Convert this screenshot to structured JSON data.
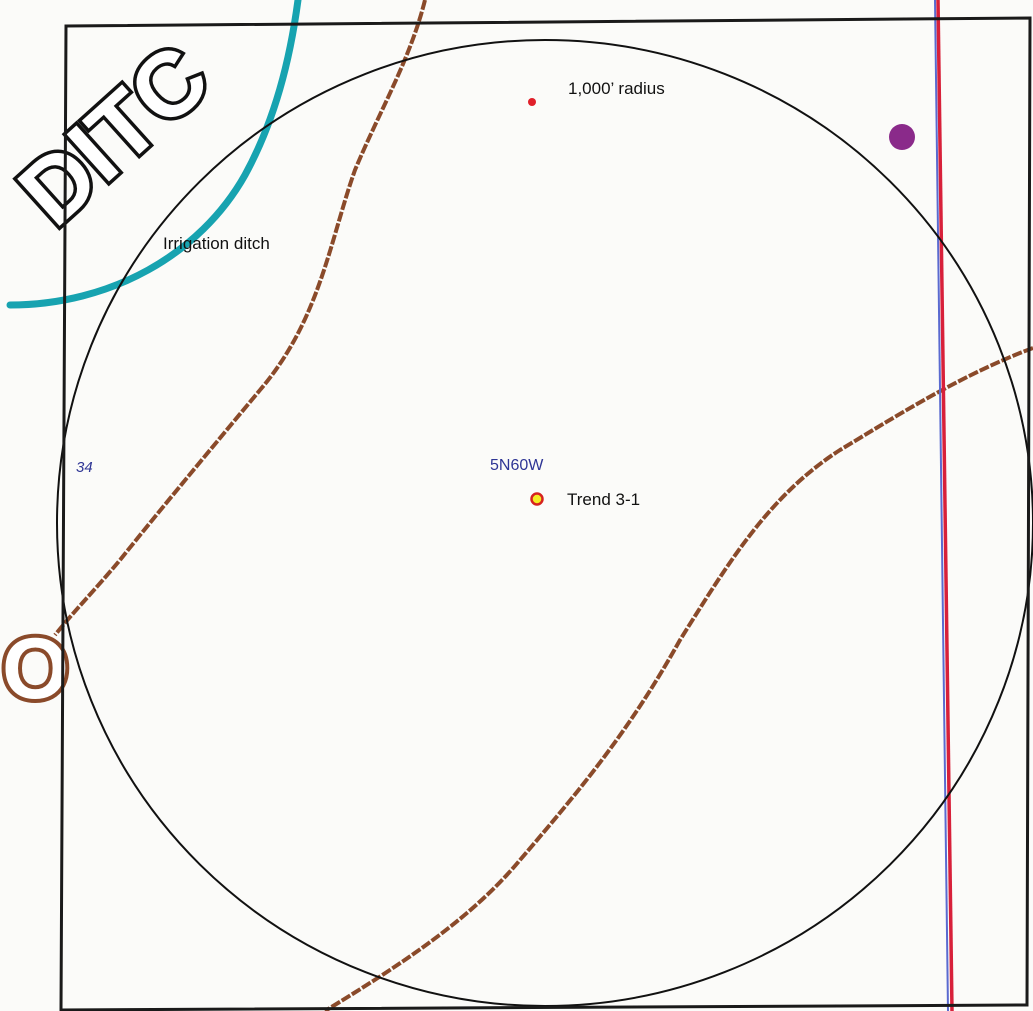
{
  "map": {
    "labels": {
      "radius": "1,000’ radius",
      "ditch": "Irrigation ditch",
      "section": "34",
      "township": "5N60W",
      "well": "Trend 3-1",
      "ditch_map_text": "DITC",
      "partial_letter": "O"
    },
    "colors": {
      "background": "#fbfbf9",
      "frame": "#1a1a1a",
      "circle": "#111111",
      "ditch": "#17a3b0",
      "contour": "#8a4a2a",
      "road_red": "#d8203a",
      "road_blue": "#5a6ad0",
      "blue_text": "#2e3595",
      "well_fill": "#f4ec22",
      "well_stroke": "#d6231f",
      "red_dot": "#e0202a",
      "purple_marker": "#8a2a8a"
    },
    "icons": {
      "well": "well-location-icon",
      "center_point": "center-point-icon",
      "marker": "purple-marker-icon"
    }
  }
}
